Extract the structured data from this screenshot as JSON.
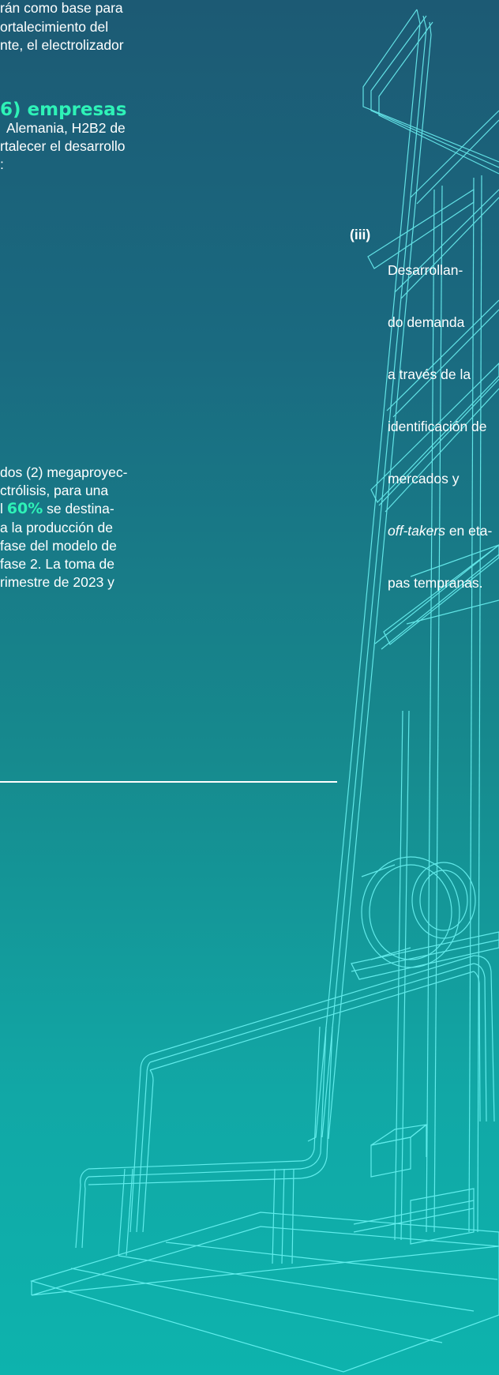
{
  "intro_lines": [
    "rán como base para",
    "ortalecimiento del",
    "nte, el electrolizador"
  ],
  "companies": {
    "heading": "6) empresas",
    "lines": [
      "Alemania, H2B2 de",
      "rtalecer el desarrollo",
      ":"
    ]
  },
  "item_iii": {
    "label": "(iii)",
    "lines": [
      "Desarrollan-",
      "do demanda",
      "a través de la",
      "identificación de",
      "mercados y",
      "off-takers en eta-",
      "pas tempranas."
    ]
  },
  "projects": {
    "line1": "dos (2) megaproyec-",
    "line2": "ctrólisis, para una",
    "line3_pre": "l ",
    "line3_hl": "60%",
    "line3_post": " se destina-",
    "line4": "a la producción de",
    "line5": "fase del modelo de",
    "line6": "fase 2. La toma de",
    "line7": "rimestre de 2023 y"
  },
  "colors": {
    "accent": "#2ef2b7",
    "line": "#5ff7f7"
  }
}
